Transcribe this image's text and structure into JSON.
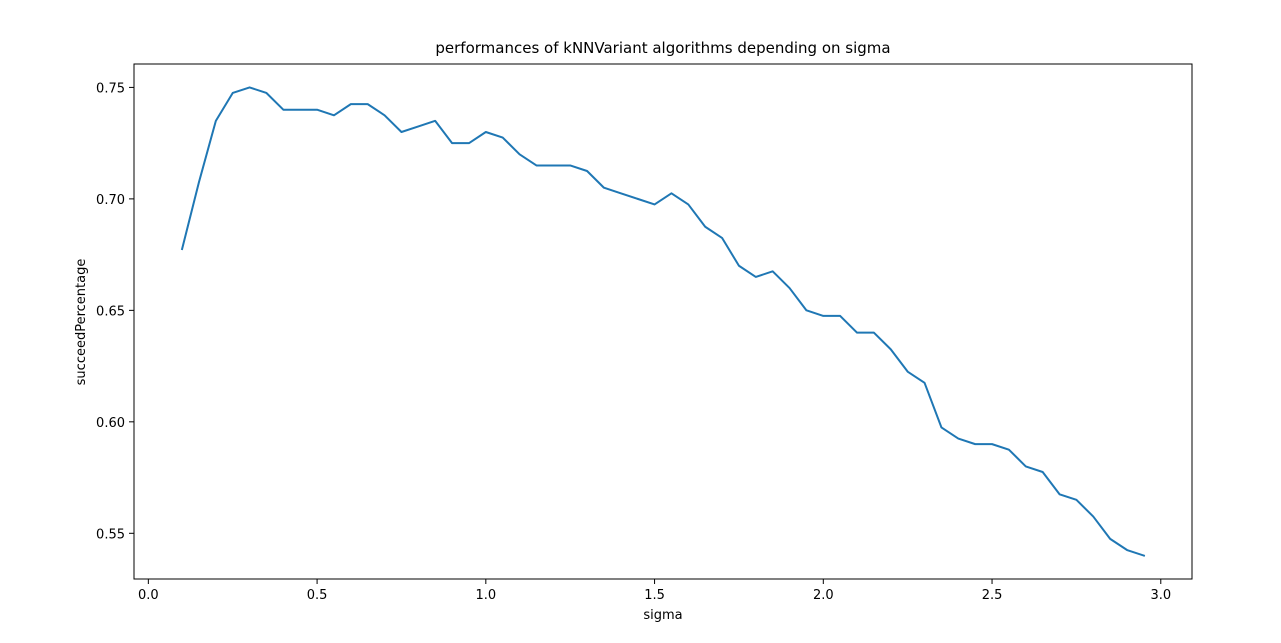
{
  "chart_data": {
    "type": "line",
    "title": "performances of kNNVariant algorithms depending on sigma",
    "xlabel": "sigma",
    "ylabel": "succeedPercentage",
    "xlim": [
      -0.0425,
      3.0925
    ],
    "ylim": [
      0.5295,
      0.7605
    ],
    "xticks": [
      {
        "value": 0.0,
        "label": "0.0"
      },
      {
        "value": 0.5,
        "label": "0.5"
      },
      {
        "value": 1.0,
        "label": "1.0"
      },
      {
        "value": 1.5,
        "label": "1.5"
      },
      {
        "value": 2.0,
        "label": "2.0"
      },
      {
        "value": 2.5,
        "label": "2.5"
      },
      {
        "value": 3.0,
        "label": "3.0"
      }
    ],
    "yticks": [
      {
        "value": 0.55,
        "label": "0.55"
      },
      {
        "value": 0.6,
        "label": "0.60"
      },
      {
        "value": 0.65,
        "label": "0.65"
      },
      {
        "value": 0.7,
        "label": "0.70"
      },
      {
        "value": 0.75,
        "label": "0.75"
      }
    ],
    "grid": false,
    "series": [
      {
        "color": "#1f77b4",
        "x": [
          0.1,
          0.15,
          0.2,
          0.25,
          0.3,
          0.35,
          0.4,
          0.45,
          0.5,
          0.55,
          0.6,
          0.65,
          0.7,
          0.75,
          0.8,
          0.85,
          0.9,
          0.95,
          1.0,
          1.05,
          1.1,
          1.15,
          1.2,
          1.25,
          1.3,
          1.35,
          1.4,
          1.45,
          1.5,
          1.55,
          1.6,
          1.65,
          1.7,
          1.75,
          1.8,
          1.85,
          1.9,
          1.95,
          2.0,
          2.05,
          2.1,
          2.15,
          2.2,
          2.25,
          2.3,
          2.35,
          2.4,
          2.45,
          2.5,
          2.55,
          2.6,
          2.65,
          2.7,
          2.75,
          2.8,
          2.85,
          2.9,
          2.95
        ],
        "y": [
          0.6775,
          0.7075,
          0.735,
          0.7475,
          0.75,
          0.7475,
          0.74,
          0.74,
          0.74,
          0.7375,
          0.7425,
          0.7425,
          0.7375,
          0.73,
          0.7325,
          0.735,
          0.725,
          0.725,
          0.73,
          0.7275,
          0.72,
          0.715,
          0.715,
          0.715,
          0.7125,
          0.705,
          0.7025,
          0.7,
          0.6975,
          0.7025,
          0.6975,
          0.6875,
          0.6825,
          0.67,
          0.665,
          0.6675,
          0.66,
          0.65,
          0.6475,
          0.6475,
          0.64,
          0.64,
          0.6325,
          0.6225,
          0.6175,
          0.5975,
          0.5925,
          0.59,
          0.59,
          0.5875,
          0.58,
          0.5775,
          0.5675,
          0.565,
          0.5575,
          0.5475,
          0.5425,
          0.54
        ]
      }
    ]
  }
}
